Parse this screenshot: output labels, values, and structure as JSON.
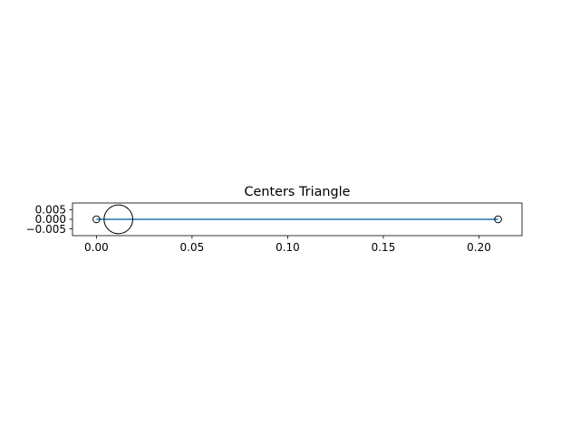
{
  "chart_data": {
    "type": "line",
    "title": "Centers Triangle",
    "xlabel": "",
    "ylabel": "",
    "xlim": [
      -0.0125,
      0.2225
    ],
    "ylim": [
      -0.0085,
      0.0085
    ],
    "x_ticks": [
      0.0,
      0.05,
      0.1,
      0.15,
      0.2
    ],
    "x_tick_labels": [
      "0.00",
      "0.05",
      "0.10",
      "0.15",
      "0.20"
    ],
    "y_ticks": [
      0.005,
      0.0,
      -0.005
    ],
    "y_tick_labels": [
      "0.005",
      "0.000",
      "−0.005"
    ],
    "grid": false,
    "series": [
      {
        "x": [
          0.0,
          0.21
        ],
        "y": [
          0.0,
          0.0
        ],
        "color": "#1f77b4",
        "marker": "circle-open"
      }
    ],
    "circles": [
      {
        "cx": 0.0,
        "cy": 0.0,
        "r": 0.0018
      },
      {
        "cx": 0.0115,
        "cy": 0.0,
        "r": 0.0075
      },
      {
        "cx": 0.21,
        "cy": 0.0,
        "r": 0.0018
      }
    ]
  }
}
